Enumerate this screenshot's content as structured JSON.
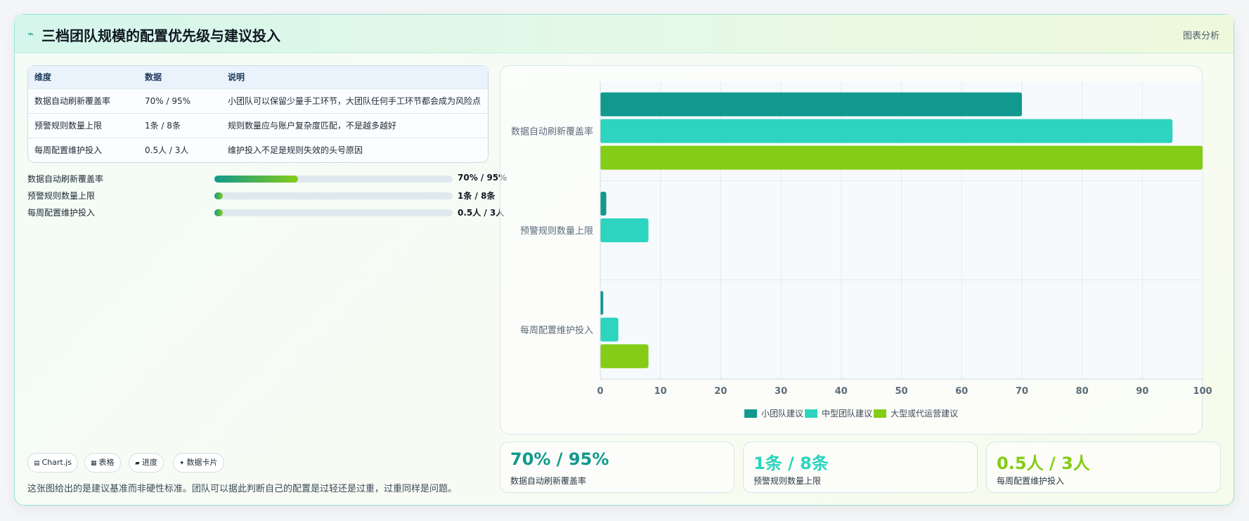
{
  "header": {
    "icon": "line-chart-icon",
    "title": "三档团队规模的配置优先级与建议投入",
    "action": "图表分析"
  },
  "table": {
    "columns": [
      "维度",
      "数据",
      "说明"
    ],
    "rows": [
      [
        "数据自动刷新覆盖率",
        "70% / 95%",
        "小团队可以保留少量手工环节，大团队任何手工环节都会成为风险点"
      ],
      [
        "预警规则数量上限",
        "1条 / 8条",
        "规则数量应与账户复杂度匹配，不是越多越好"
      ],
      [
        "每周配置维护投入",
        "0.5人 / 3人",
        "维护投入不足是规则失效的头号原因"
      ]
    ]
  },
  "progress": [
    {
      "label": "数据自动刷新覆盖率",
      "value": "70% / 95%",
      "fraction": 0.35
    },
    {
      "label": "预警规则数量上限",
      "value": "1条 / 8条",
      "fraction": 0.035
    },
    {
      "label": "每周配置维护投入",
      "value": "0.5人 / 3人",
      "fraction": 0.035
    }
  ],
  "chips": [
    {
      "icon": "chart-icon",
      "label": "Chart.js"
    },
    {
      "icon": "table-icon",
      "label": "表格"
    },
    {
      "icon": "progress-icon",
      "label": "进度"
    },
    {
      "icon": "sparkle-icon",
      "label": "数据卡片"
    }
  ],
  "footnote": "这张图给出的是建议基准而非硬性标准。团队可以据此判断自己的配置是过轻还是过重，过重同样是问题。",
  "stats": [
    {
      "value": "70% / 95%",
      "label": "数据自动刷新覆盖率",
      "color": "#11998e"
    },
    {
      "value": "1条 / 8条",
      "label": "预警规则数量上限",
      "color": "#2dd4bf"
    },
    {
      "value": "0.5人 / 3人",
      "label": "每周配置维护投入",
      "color": "#84cc16"
    }
  ],
  "chart_data": {
    "type": "bar",
    "orientation": "horizontal",
    "categories": [
      "数据自动刷新覆盖率",
      "预警规则数量上限",
      "每周配置维护投入"
    ],
    "series": [
      {
        "name": "小团队建议",
        "color": "#11998e",
        "values": [
          70,
          1,
          0.5
        ]
      },
      {
        "name": "中型团队建议",
        "color": "#2dd4bf",
        "values": [
          95,
          8,
          3
        ]
      },
      {
        "name": "大型或代运营建议",
        "color": "#84cc16",
        "values": [
          100,
          0,
          8
        ]
      }
    ],
    "xlim": [
      0,
      100
    ],
    "xticks": [
      0,
      10,
      20,
      30,
      40,
      50,
      60,
      70,
      80,
      90,
      100
    ],
    "grid": true,
    "legend": "bottom"
  }
}
